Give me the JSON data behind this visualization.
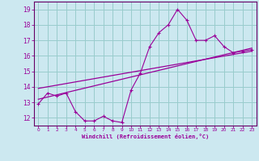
{
  "xlabel": "Windchill (Refroidissement éolien,°C)",
  "background_color": "#cce8f0",
  "grid_color": "#99cccc",
  "line_color": "#990099",
  "spine_color": "#660066",
  "xlim": [
    -0.5,
    23.5
  ],
  "ylim": [
    11.5,
    19.5
  ],
  "yticks": [
    12,
    13,
    14,
    15,
    16,
    17,
    18,
    19
  ],
  "xticks": [
    0,
    1,
    2,
    3,
    4,
    5,
    6,
    7,
    8,
    9,
    10,
    11,
    12,
    13,
    14,
    15,
    16,
    17,
    18,
    19,
    20,
    21,
    22,
    23
  ],
  "series1_x": [
    0,
    1,
    2,
    3,
    4,
    5,
    6,
    7,
    8,
    9,
    10,
    11,
    12,
    13,
    14,
    15,
    16,
    17,
    18,
    19,
    20,
    21,
    22,
    23
  ],
  "series1_y": [
    12.9,
    13.6,
    13.4,
    13.6,
    12.4,
    11.8,
    11.8,
    12.1,
    11.8,
    11.7,
    13.8,
    14.9,
    16.6,
    17.5,
    18.0,
    19.0,
    18.3,
    17.0,
    17.0,
    17.3,
    16.6,
    16.2,
    16.3,
    16.4
  ],
  "trend1_x": [
    0,
    23
  ],
  "trend1_y": [
    13.2,
    16.5
  ],
  "trend2_x": [
    0,
    23
  ],
  "trend2_y": [
    13.9,
    16.3
  ]
}
